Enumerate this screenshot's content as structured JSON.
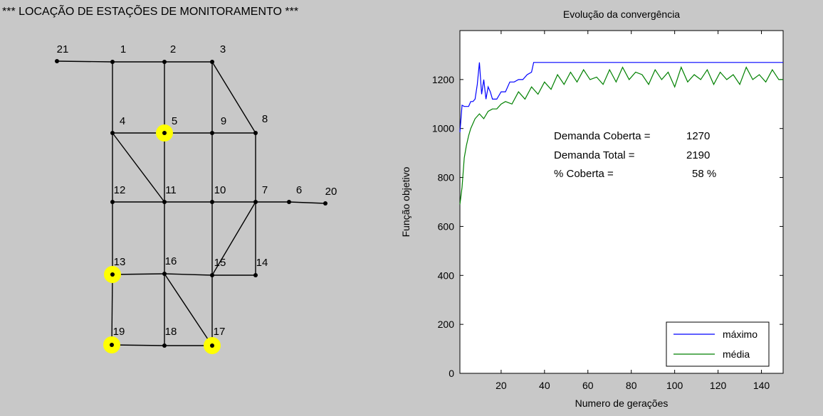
{
  "network": {
    "title": "*** LOCAÇÃO DE ESTAÇÕES DE MONITORAMENTO ***",
    "nodes": [
      {
        "id": "21",
        "stations": false
      },
      {
        "id": "1",
        "stations": false
      },
      {
        "id": "2",
        "stations": false
      },
      {
        "id": "3",
        "stations": false
      },
      {
        "id": "4",
        "stations": false
      },
      {
        "id": "5",
        "stations": true
      },
      {
        "id": "9",
        "stations": false
      },
      {
        "id": "8",
        "stations": false
      },
      {
        "id": "12",
        "stations": false
      },
      {
        "id": "11",
        "stations": false
      },
      {
        "id": "10",
        "stations": false
      },
      {
        "id": "7",
        "stations": false
      },
      {
        "id": "6",
        "stations": false
      },
      {
        "id": "20",
        "stations": false
      },
      {
        "id": "13",
        "stations": true
      },
      {
        "id": "16",
        "stations": false
      },
      {
        "id": "15",
        "stations": false
      },
      {
        "id": "14",
        "stations": false
      },
      {
        "id": "19",
        "stations": true
      },
      {
        "id": "18",
        "stations": false
      },
      {
        "id": "17",
        "stations": true
      }
    ],
    "edges": [
      [
        "21",
        "1"
      ],
      [
        "1",
        "2"
      ],
      [
        "2",
        "3"
      ],
      [
        "1",
        "4"
      ],
      [
        "2",
        "5"
      ],
      [
        "3",
        "9"
      ],
      [
        "3",
        "8"
      ],
      [
        "4",
        "5"
      ],
      [
        "5",
        "9"
      ],
      [
        "9",
        "8"
      ],
      [
        "4",
        "12"
      ],
      [
        "4",
        "11"
      ],
      [
        "5",
        "11"
      ],
      [
        "9",
        "10"
      ],
      [
        "8",
        "7"
      ],
      [
        "12",
        "11"
      ],
      [
        "11",
        "10"
      ],
      [
        "10",
        "7"
      ],
      [
        "7",
        "6"
      ],
      [
        "6",
        "20"
      ],
      [
        "12",
        "13"
      ],
      [
        "11",
        "16"
      ],
      [
        "10",
        "15"
      ],
      [
        "7",
        "15"
      ],
      [
        "7",
        "14"
      ],
      [
        "13",
        "16"
      ],
      [
        "16",
        "15"
      ],
      [
        "15",
        "14"
      ],
      [
        "13",
        "19"
      ],
      [
        "16",
        "18"
      ],
      [
        "16",
        "17"
      ],
      [
        "15",
        "17"
      ],
      [
        "19",
        "18"
      ],
      [
        "18",
        "17"
      ]
    ],
    "station_color": "#ffff00"
  },
  "chart_data": {
    "type": "line",
    "title": "Evolução da convergência",
    "xlabel": "Numero de gerações",
    "ylabel": "Função objetivo",
    "xlim": [
      1,
      150
    ],
    "ylim": [
      0,
      1400
    ],
    "xticks": [
      20,
      40,
      60,
      80,
      100,
      120,
      140
    ],
    "yticks": [
      0,
      200,
      400,
      600,
      800,
      1000,
      1200
    ],
    "series": [
      {
        "name": "máximo",
        "color": "#0000ff",
        "x": [
          1,
          2,
          3,
          5,
          6,
          7,
          8,
          9,
          10,
          11,
          12,
          13,
          14,
          15,
          16,
          18,
          20,
          22,
          24,
          26,
          28,
          30,
          32,
          34,
          35,
          150
        ],
        "y": [
          985,
          1095,
          1090,
          1090,
          1110,
          1110,
          1120,
          1180,
          1270,
          1140,
          1200,
          1120,
          1170,
          1150,
          1120,
          1120,
          1150,
          1150,
          1190,
          1190,
          1200,
          1200,
          1220,
          1230,
          1270,
          1270
        ]
      },
      {
        "name": "média",
        "color": "#008000",
        "x": [
          1,
          2,
          3,
          4,
          5,
          6,
          8,
          10,
          12,
          14,
          16,
          18,
          20,
          22,
          25,
          28,
          31,
          34,
          37,
          40,
          43,
          46,
          49,
          52,
          55,
          58,
          61,
          64,
          67,
          70,
          73,
          76,
          79,
          82,
          85,
          88,
          91,
          94,
          97,
          100,
          103,
          106,
          109,
          112,
          115,
          118,
          121,
          124,
          127,
          130,
          133,
          136,
          139,
          142,
          145,
          148,
          150
        ],
        "y": [
          690,
          760,
          880,
          930,
          970,
          1000,
          1040,
          1060,
          1040,
          1070,
          1080,
          1080,
          1100,
          1110,
          1100,
          1150,
          1120,
          1170,
          1140,
          1190,
          1160,
          1220,
          1180,
          1230,
          1190,
          1240,
          1200,
          1210,
          1180,
          1240,
          1190,
          1250,
          1200,
          1230,
          1220,
          1180,
          1240,
          1200,
          1230,
          1170,
          1250,
          1190,
          1220,
          1200,
          1240,
          1180,
          1230,
          1200,
          1220,
          1180,
          1250,
          1200,
          1220,
          1190,
          1240,
          1200,
          1200
        ]
      }
    ],
    "annotations": [
      {
        "label": "Demanda Coberta =",
        "value": "1270"
      },
      {
        "label": "Demanda Total =",
        "value": "2190"
      },
      {
        "label": "% Coberta =",
        "value": "58  %"
      }
    ],
    "legend": {
      "position": "bottom-right",
      "entries": [
        "máximo",
        "média"
      ]
    }
  }
}
